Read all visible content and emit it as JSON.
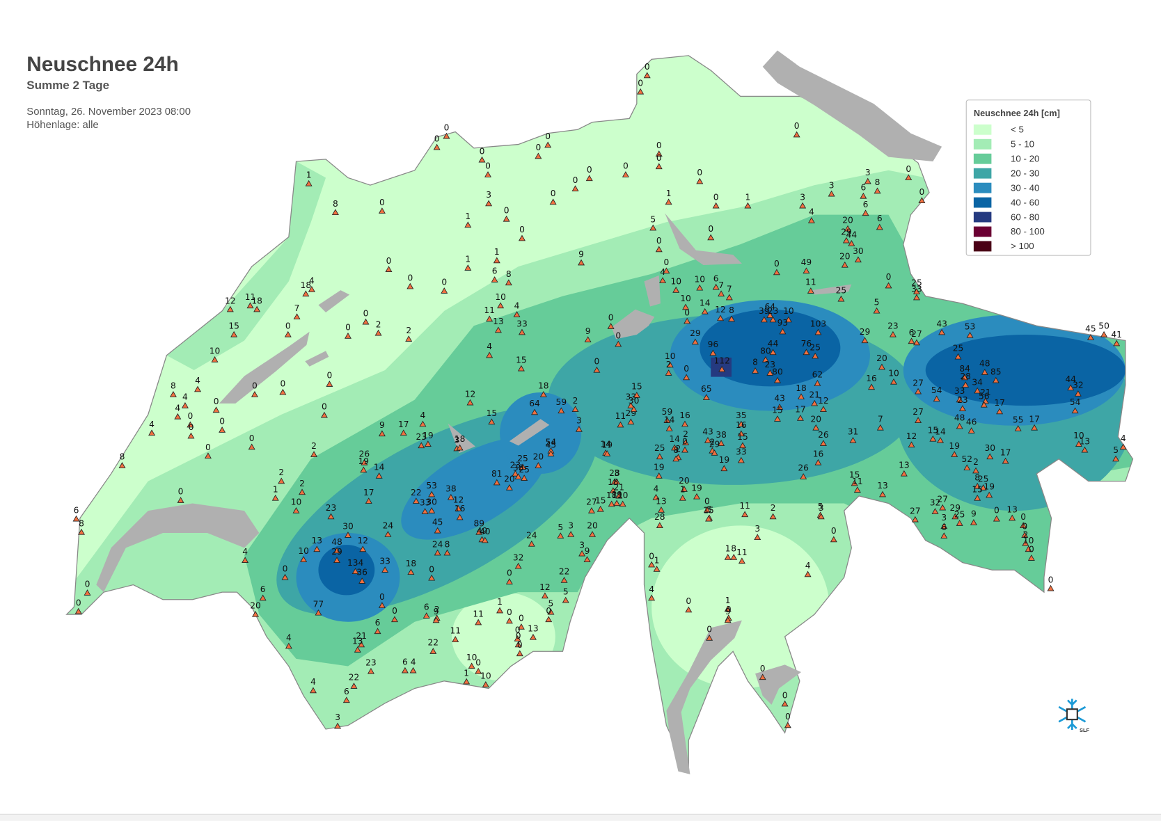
{
  "header": {
    "title": "Neuschnee 24h",
    "subtitle": "Summe 2 Tage",
    "date": "Sonntag, 26. November 2023 08:00",
    "elevation": "Höhenlage: alle"
  },
  "legend": {
    "title": "Neuschnee 24h [cm]",
    "items": [
      {
        "label": "< 5",
        "color": "#ccffcc"
      },
      {
        "label": "5 - 10",
        "color": "#a3ecb5"
      },
      {
        "label": "10 - 20",
        "color": "#66cc99"
      },
      {
        "label": "20 - 30",
        "color": "#3ea6a6"
      },
      {
        "label": "30 - 40",
        "color": "#2b8cbe"
      },
      {
        "label": "40 - 60",
        "color": "#0a64a4"
      },
      {
        "label": "60 - 80",
        "color": "#253a80"
      },
      {
        "label": "80 - 100",
        "color": "#6b0033"
      },
      {
        "label": "> 100",
        "color": "#4a0016"
      }
    ]
  },
  "logo": "SLF",
  "stations": [
    0,
    0,
    0,
    0,
    0,
    0,
    0,
    0,
    0,
    0,
    0,
    0,
    0,
    0,
    3,
    0,
    1,
    0,
    0,
    0,
    0,
    0,
    3,
    8,
    3,
    6,
    6,
    6,
    3,
    1,
    0,
    1,
    5,
    0,
    0,
    0,
    4,
    4,
    20,
    29,
    44,
    30,
    20,
    49,
    0,
    11,
    25,
    0,
    5,
    25,
    33,
    1,
    8,
    0,
    0,
    1,
    1,
    6,
    8,
    9,
    0,
    0,
    4,
    18,
    11,
    18,
    12,
    7,
    15,
    0,
    10,
    0,
    2,
    0,
    2,
    10,
    4,
    11,
    13,
    33,
    9,
    0,
    0,
    4,
    15,
    0,
    8,
    4,
    4,
    4,
    0,
    0,
    0,
    0,
    0,
    0,
    0,
    0,
    4,
    0,
    0,
    8,
    2,
    2,
    1,
    2,
    0,
    10,
    6,
    8,
    12,
    15,
    18,
    64,
    59,
    2,
    3,
    4,
    17,
    9,
    19,
    23,
    3,
    18,
    26,
    19,
    14,
    17,
    54,
    45,
    20,
    25,
    23,
    38,
    25,
    81,
    20,
    53,
    38,
    22,
    33,
    30,
    12,
    16,
    23,
    30,
    24,
    45,
    89,
    49,
    40,
    24,
    24,
    8,
    18,
    0,
    33,
    12,
    48,
    29,
    134,
    36,
    13,
    10,
    0,
    4,
    0,
    0,
    6,
    20,
    77,
    0,
    6,
    0,
    6,
    2,
    9,
    11,
    1,
    0,
    0,
    13,
    0,
    0,
    0,
    11,
    22,
    21,
    13,
    23,
    6,
    4,
    22,
    6,
    4,
    4,
    10,
    0,
    1,
    10,
    3,
    5,
    0,
    12,
    5,
    22,
    32,
    0,
    5,
    3,
    20,
    3,
    9,
    27,
    15,
    14,
    19,
    11,
    29,
    33,
    15,
    30,
    28,
    3,
    18,
    21,
    18,
    19,
    10,
    19,
    25,
    59,
    14,
    16,
    14,
    2,
    8,
    2,
    0,
    43,
    38,
    2,
    29,
    35,
    16,
    15,
    33,
    19,
    4,
    20,
    1,
    19,
    13,
    28,
    0,
    5,
    15,
    11,
    2,
    5,
    3,
    3,
    0,
    1,
    8,
    11,
    0,
    1,
    4,
    0,
    1,
    0,
    9,
    0,
    4,
    0,
    0,
    0,
    10,
    10,
    2,
    0,
    0,
    10,
    14,
    29,
    10,
    6,
    7,
    7,
    12,
    8,
    96,
    112,
    65,
    8,
    80,
    44,
    23,
    80,
    39,
    64,
    23,
    10,
    93,
    103,
    76,
    25,
    62,
    18,
    21,
    12,
    43,
    15,
    17,
    20,
    26,
    31,
    16,
    26,
    29,
    16,
    20,
    10,
    23,
    6,
    27,
    43,
    53,
    25,
    48,
    85,
    84,
    28,
    34,
    21,
    33,
    23,
    56,
    17,
    54,
    27,
    27,
    15,
    14,
    48,
    46,
    55,
    17,
    54,
    44,
    32,
    45,
    50,
    41,
    12,
    19,
    30,
    17,
    10,
    13,
    4,
    5,
    52,
    2,
    13,
    13,
    15,
    11,
    7,
    8,
    25,
    19,
    15,
    32,
    27,
    29,
    25,
    9,
    0,
    13,
    27,
    3,
    6,
    0,
    0,
    2,
    10,
    0,
    0
  ]
}
